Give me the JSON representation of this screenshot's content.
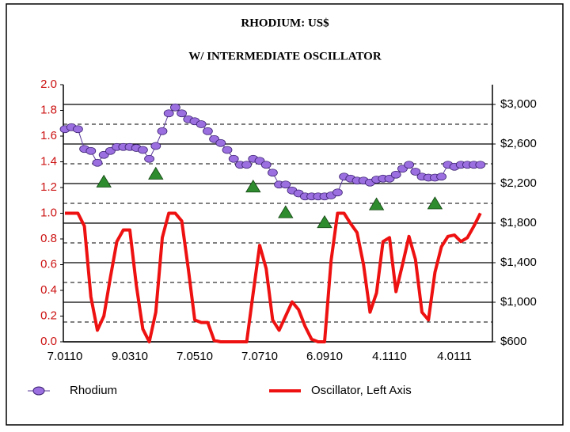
{
  "chart_data": {
    "type": "line",
    "title": "RHODIUM: US$",
    "subtitle": "W/ INTERMEDIATE OSCILLATOR",
    "categories": [
      "7.0110",
      null,
      null,
      null,
      null,
      null,
      null,
      null,
      null,
      null,
      "9.0310",
      null,
      null,
      null,
      null,
      null,
      null,
      null,
      null,
      null,
      "7.0510",
      null,
      null,
      null,
      null,
      null,
      null,
      null,
      null,
      null,
      "7.0710",
      null,
      null,
      null,
      null,
      null,
      null,
      null,
      null,
      null,
      "6.0910",
      null,
      null,
      null,
      null,
      null,
      null,
      null,
      null,
      null,
      "4.1110",
      null,
      null,
      null,
      null,
      null,
      null,
      null,
      null,
      null,
      "4.0111",
      null,
      null,
      null,
      null
    ],
    "series": [
      {
        "name": "Rhodium",
        "color": "#9b6fe0",
        "axis": "y2",
        "marker": "circle",
        "values": [
          2750,
          2770,
          2750,
          2550,
          2530,
          2410,
          2490,
          2530,
          2570,
          2570,
          2570,
          2560,
          2540,
          2450,
          2580,
          2730,
          2910,
          2970,
          2910,
          2850,
          2830,
          2800,
          2730,
          2650,
          2610,
          2540,
          2450,
          2390,
          2390,
          2450,
          2430,
          2390,
          2310,
          2190,
          2190,
          2130,
          2100,
          2070,
          2070,
          2070,
          2070,
          2080,
          2110,
          2270,
          2250,
          2230,
          2230,
          2210,
          2240,
          2250,
          2250,
          2290,
          2350,
          2390,
          2320,
          2270,
          2260,
          2260,
          2270,
          2390,
          2370,
          2390,
          2390,
          2390,
          2390
        ]
      },
      {
        "name": "Oscillator, Left Axis",
        "color": "#ee1111",
        "axis": "y",
        "values": [
          1.0,
          1.0,
          1.0,
          0.9,
          0.35,
          0.09,
          0.2,
          0.5,
          0.78,
          0.87,
          0.87,
          0.44,
          0.1,
          0,
          0.23,
          0.81,
          1.0,
          1.0,
          0.94,
          0.57,
          0.17,
          0.15,
          0.15,
          0.01,
          0,
          0,
          0,
          0,
          0,
          0.38,
          0.75,
          0.57,
          0.17,
          0.09,
          0.2,
          0.31,
          0.25,
          0.12,
          0.02,
          0,
          0,
          0.63,
          1.0,
          1.0,
          0.92,
          0.85,
          0.6,
          0.23,
          0.38,
          0.78,
          0.81,
          0.39,
          0.6,
          0.82,
          0.64,
          0.23,
          0.17,
          0.54,
          0.74,
          0.82,
          0.83,
          0.78,
          0.81,
          0.9,
          1.0
        ]
      }
    ],
    "signal_markers": {
      "color": "#2e8b2e",
      "axis": "y2",
      "x": [
        6,
        14,
        29,
        34,
        40,
        48,
        57
      ],
      "values": [
        2220,
        2300,
        2170,
        1910,
        1810,
        1990,
        2000
      ]
    },
    "ylim": [
      0,
      2
    ],
    "yticks": [
      {
        "value": 0,
        "label": "0.0"
      },
      0.2,
      0.4,
      0.6,
      0.8,
      {
        "value": 1,
        "label": "1.0"
      },
      1.2,
      1.4,
      1.6,
      1.8,
      {
        "value": 2,
        "label": "2.0"
      }
    ],
    "y2lim": [
      600,
      3200
    ],
    "y2ticks": [
      {
        "value": 600,
        "label": "$600"
      },
      {
        "value": 1000,
        "label": "$1,000"
      },
      {
        "value": 1400,
        "label": "$1,400"
      },
      {
        "value": 1800,
        "label": "$1,800"
      },
      {
        "value": 2200,
        "label": "$2,200"
      },
      {
        "value": 2600,
        "label": "$2,600"
      },
      {
        "value": 3000,
        "label": "$3,000"
      }
    ],
    "y2_minor_grid": [
      800,
      1200,
      1600,
      2000,
      2400,
      2800
    ],
    "grid": true
  }
}
